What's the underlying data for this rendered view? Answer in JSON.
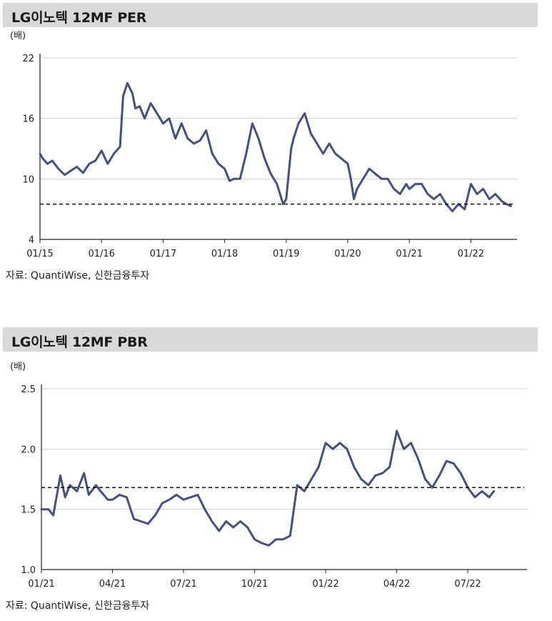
{
  "panels": [
    {
      "title": "LG이노텍 12MF PER",
      "unit": "(배)",
      "source": "자료: QuantiWise, 신한금융투자",
      "chart_data": {
        "type": "line",
        "title": "LG이노텍 12MF PER",
        "ylabel": "(배)",
        "xlabel": "",
        "ylim": [
          4,
          22
        ],
        "yticks": [
          4,
          10,
          16,
          22
        ],
        "xlim": [
          2015.0,
          2022.75
        ],
        "xticks": [
          {
            "label": "01/15",
            "x": 2015.0
          },
          {
            "label": "01/16",
            "x": 2016.0
          },
          {
            "label": "01/17",
            "x": 2017.0
          },
          {
            "label": "01/18",
            "x": 2018.0
          },
          {
            "label": "01/19",
            "x": 2019.0
          },
          {
            "label": "01/20",
            "x": 2020.0
          },
          {
            "label": "01/21",
            "x": 2021.0
          },
          {
            "label": "01/22",
            "x": 2022.0
          }
        ],
        "reference_line": {
          "y": 7.5,
          "style": "dashed"
        },
        "series": [
          {
            "color": "#44507e",
            "x": [
              2015.0,
              2015.05,
              2015.12,
              2015.2,
              2015.3,
              2015.4,
              2015.5,
              2015.6,
              2015.7,
              2015.8,
              2015.9,
              2016.0,
              2016.1,
              2016.2,
              2016.3,
              2016.35,
              2016.42,
              2016.5,
              2016.55,
              2016.62,
              2016.7,
              2016.8,
              2016.9,
              2017.0,
              2017.1,
              2017.2,
              2017.3,
              2017.4,
              2017.5,
              2017.6,
              2017.7,
              2017.8,
              2017.9,
              2018.0,
              2018.08,
              2018.15,
              2018.25,
              2018.35,
              2018.45,
              2018.55,
              2018.65,
              2018.75,
              2018.85,
              2018.95,
              2019.0,
              2019.08,
              2019.12,
              2019.2,
              2019.3,
              2019.4,
              2019.5,
              2019.6,
              2019.7,
              2019.8,
              2019.9,
              2020.0,
              2020.05,
              2020.1,
              2020.15,
              2020.25,
              2020.35,
              2020.45,
              2020.55,
              2020.65,
              2020.75,
              2020.85,
              2020.95,
              2021.0,
              2021.1,
              2021.2,
              2021.3,
              2021.4,
              2021.5,
              2021.6,
              2021.7,
              2021.8,
              2021.9,
              2022.0,
              2022.1,
              2022.2,
              2022.3,
              2022.4,
              2022.5,
              2022.58,
              2022.65
            ],
            "y": [
              12.5,
              12.0,
              11.5,
              11.8,
              11.0,
              10.4,
              10.8,
              11.2,
              10.6,
              11.5,
              11.8,
              12.8,
              11.5,
              12.5,
              13.2,
              18.2,
              19.5,
              18.5,
              17.0,
              17.2,
              16.0,
              17.5,
              16.5,
              15.5,
              16.0,
              14.0,
              15.5,
              14.0,
              13.5,
              13.8,
              14.8,
              12.5,
              11.5,
              11.0,
              9.8,
              10.0,
              10.0,
              12.5,
              15.5,
              14.0,
              12.0,
              10.5,
              9.5,
              7.5,
              8.0,
              13.0,
              14.0,
              15.5,
              16.5,
              14.5,
              13.5,
              12.5,
              13.5,
              12.5,
              12.0,
              11.5,
              10.0,
              8.0,
              9.0,
              10.0,
              11.0,
              10.5,
              10.0,
              10.0,
              9.0,
              8.5,
              9.5,
              9.0,
              9.5,
              9.5,
              8.5,
              8.0,
              8.5,
              7.5,
              6.8,
              7.5,
              7.0,
              9.5,
              8.5,
              9.0,
              8.0,
              8.5,
              7.8,
              7.5,
              7.3
            ]
          }
        ]
      }
    },
    {
      "title": "LG이노텍 12MF PBR",
      "unit": "(배)",
      "source": "자료: QuantiWise, 신한금융투자",
      "chart_data": {
        "type": "line",
        "title": "LG이노텍 12MF PBR",
        "ylabel": "(배)",
        "xlabel": "",
        "ylim": [
          1.0,
          2.5
        ],
        "yticks": [
          1.0,
          1.5,
          2.0,
          2.5
        ],
        "yticklabels": [
          "1.0",
          "1.5",
          "2.0",
          "2.5"
        ],
        "xlim": [
          0,
          20.5
        ],
        "xticks": [
          {
            "label": "01/21",
            "x": 0
          },
          {
            "label": "04/21",
            "x": 3
          },
          {
            "label": "07/21",
            "x": 6
          },
          {
            "label": "10/21",
            "x": 9
          },
          {
            "label": "01/22",
            "x": 12
          },
          {
            "label": "04/22",
            "x": 15
          },
          {
            "label": "07/22",
            "x": 18
          }
        ],
        "reference_line": {
          "y": 1.68,
          "style": "dashed"
        },
        "series": [
          {
            "color": "#44507e",
            "x": [
              0,
              0.3,
              0.5,
              0.8,
              1.0,
              1.2,
              1.5,
              1.8,
              2.0,
              2.3,
              2.5,
              2.8,
              3.0,
              3.3,
              3.6,
              3.9,
              4.2,
              4.5,
              4.8,
              5.1,
              5.4,
              5.7,
              6.0,
              6.3,
              6.6,
              6.9,
              7.2,
              7.5,
              7.8,
              8.1,
              8.4,
              8.7,
              9.0,
              9.3,
              9.6,
              9.9,
              10.2,
              10.5,
              10.8,
              11.1,
              11.4,
              11.7,
              12.0,
              12.3,
              12.6,
              12.9,
              13.2,
              13.5,
              13.8,
              14.1,
              14.4,
              14.7,
              15.0,
              15.3,
              15.6,
              15.9,
              16.2,
              16.5,
              16.8,
              17.1,
              17.4,
              17.7,
              18.0,
              18.3,
              18.6,
              18.9,
              19.1
            ],
            "y": [
              1.5,
              1.5,
              1.45,
              1.78,
              1.6,
              1.7,
              1.65,
              1.8,
              1.62,
              1.7,
              1.65,
              1.58,
              1.58,
              1.62,
              1.6,
              1.42,
              1.4,
              1.38,
              1.45,
              1.55,
              1.58,
              1.62,
              1.58,
              1.6,
              1.62,
              1.5,
              1.4,
              1.32,
              1.4,
              1.35,
              1.4,
              1.35,
              1.25,
              1.22,
              1.2,
              1.25,
              1.25,
              1.28,
              1.7,
              1.65,
              1.75,
              1.85,
              2.05,
              2.0,
              2.05,
              2.0,
              1.85,
              1.75,
              1.7,
              1.78,
              1.8,
              1.85,
              2.15,
              2.0,
              2.05,
              1.92,
              1.75,
              1.68,
              1.78,
              1.9,
              1.88,
              1.8,
              1.68,
              1.6,
              1.65,
              1.6,
              1.65
            ]
          }
        ]
      }
    }
  ]
}
